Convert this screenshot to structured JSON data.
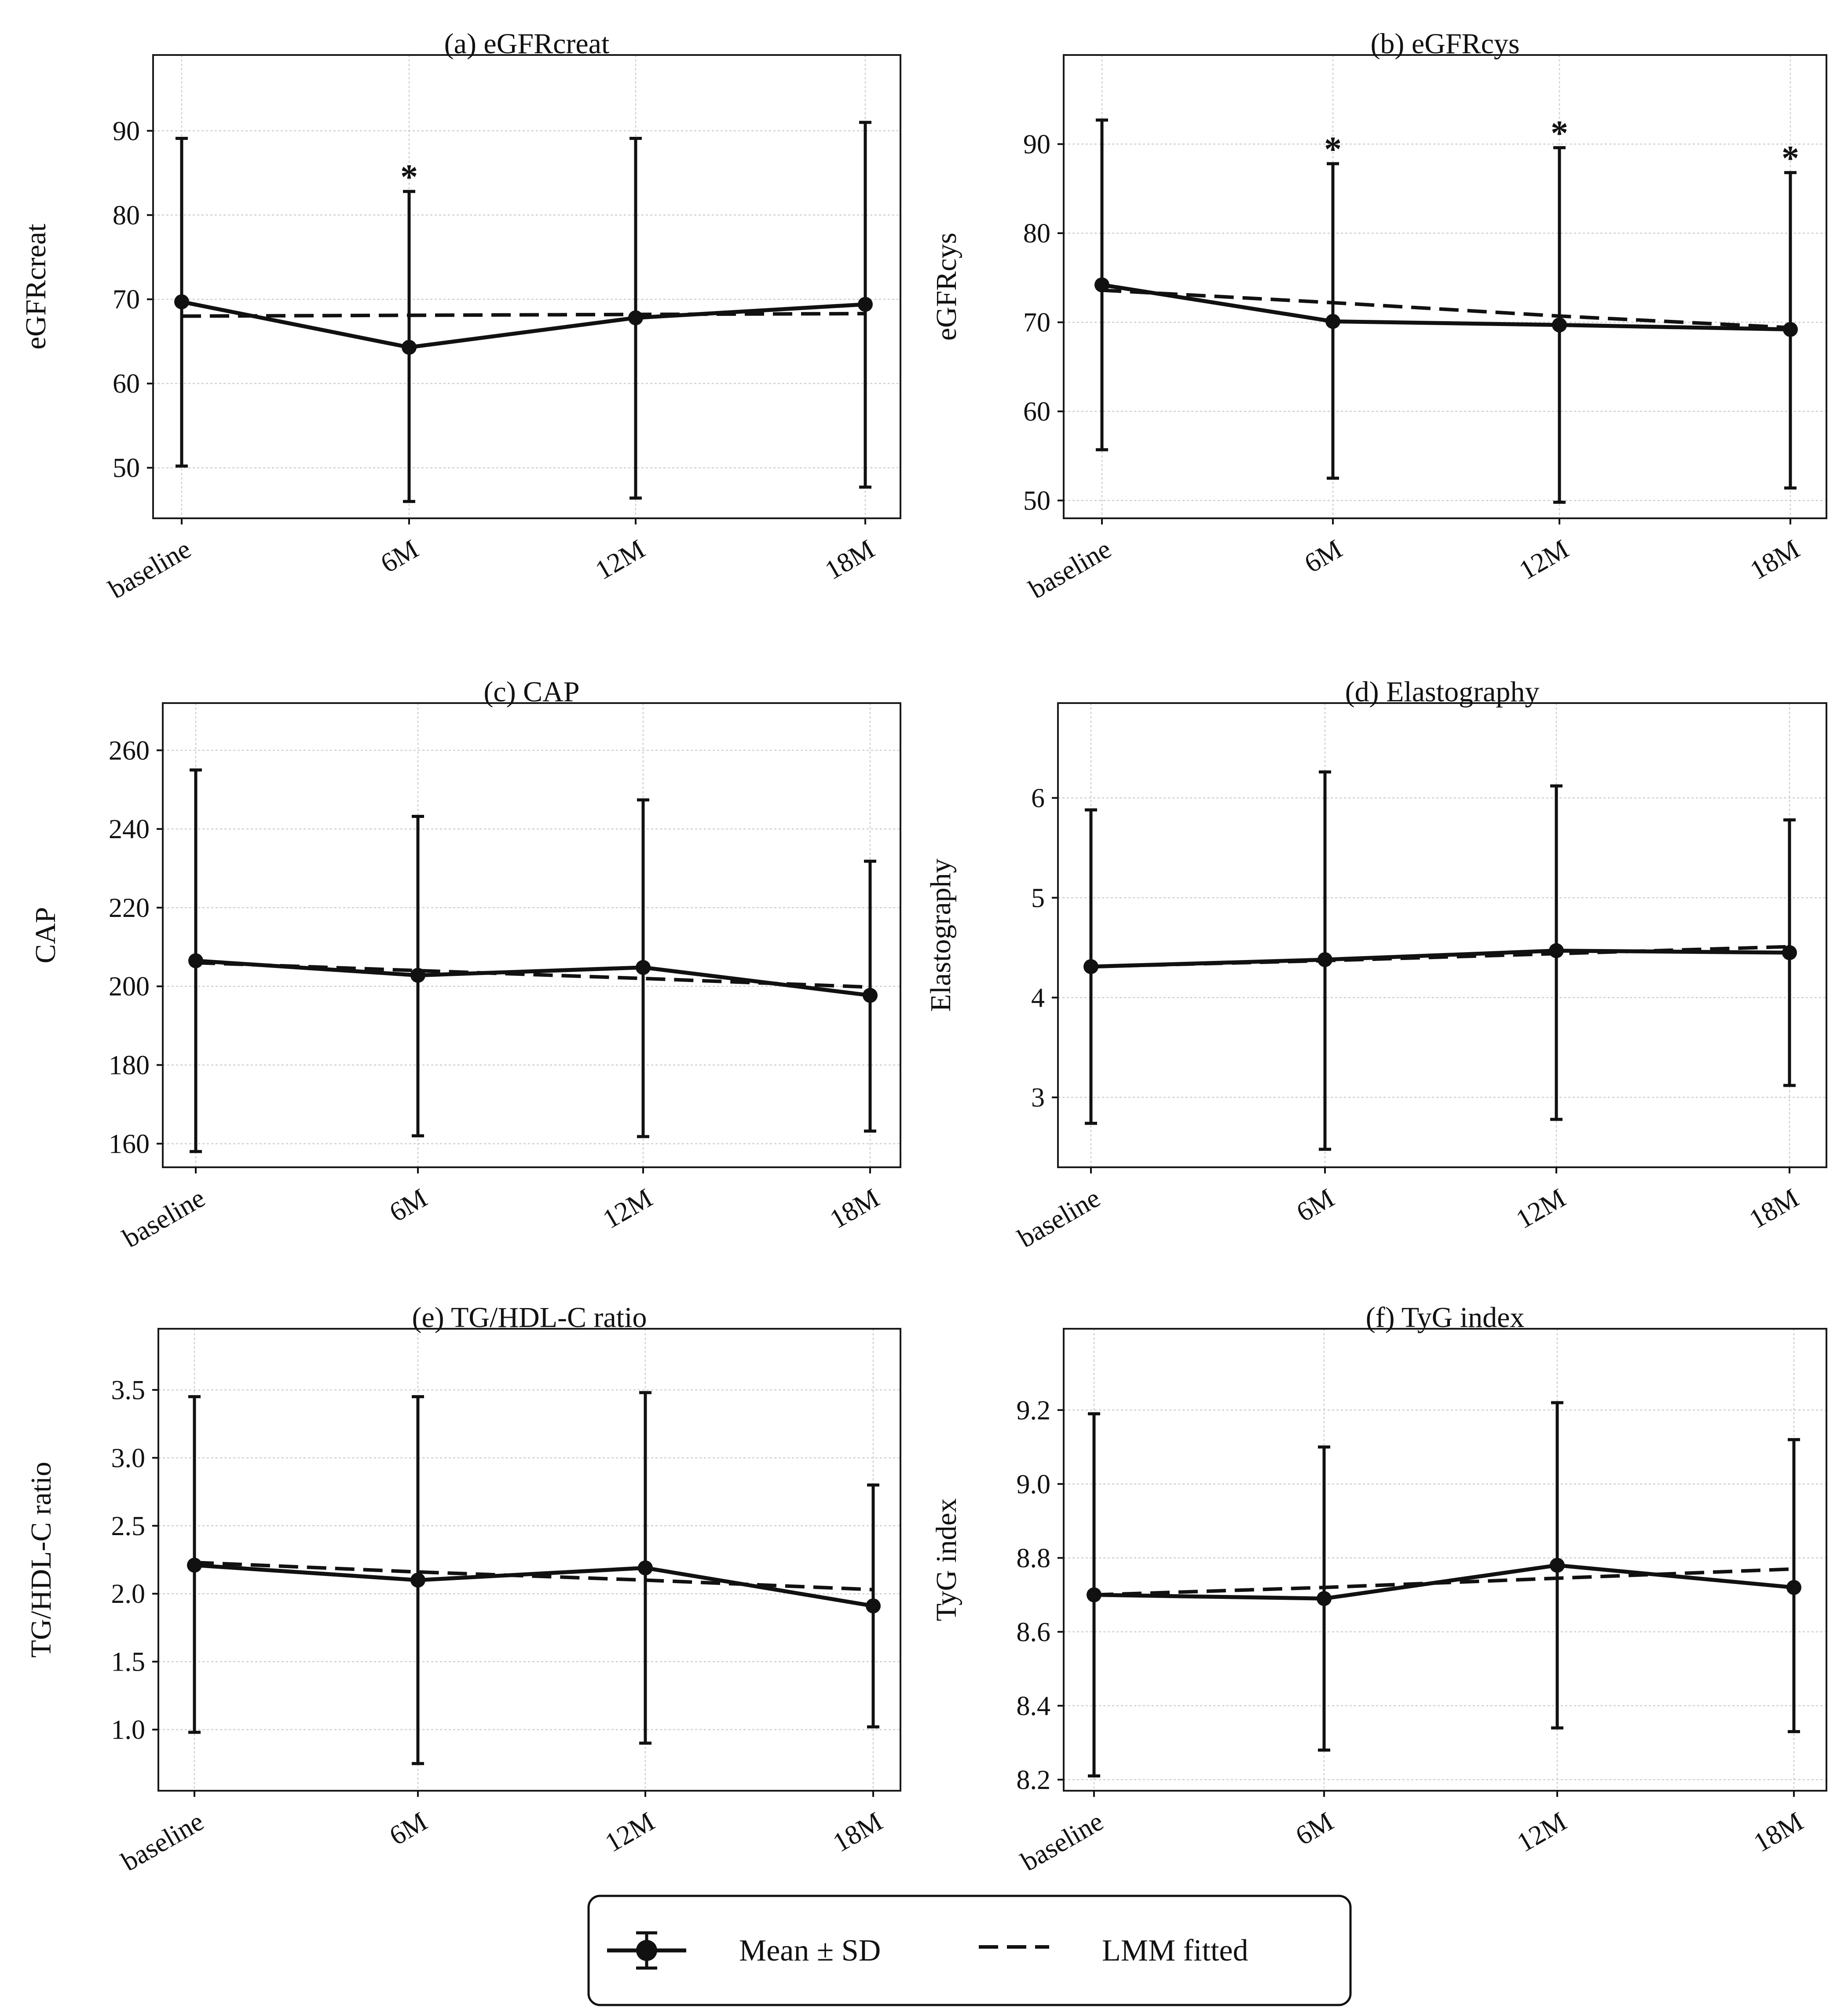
{
  "figure": {
    "legend": {
      "mean_label": "Mean ± SD",
      "lmm_label": "LMM fitted"
    }
  },
  "chart_data": [
    {
      "type": "line",
      "title": "(a) eGFRcreat",
      "ylabel": "eGFRcreat",
      "xlabel": "",
      "categories": [
        "baseline",
        "6M",
        "12M",
        "18M"
      ],
      "ylim": [
        44,
        99
      ],
      "yticks": [
        50,
        60,
        70,
        80,
        90
      ],
      "yticklabels": [
        "50",
        "60",
        "70",
        "80",
        "90"
      ],
      "series": [
        {
          "name": "Mean ± SD",
          "values": [
            69.7,
            64.3,
            67.8,
            69.4
          ],
          "err_low": [
            50.2,
            46.0,
            46.4,
            47.7
          ],
          "err_high": [
            89.1,
            82.8,
            89.1,
            91.0
          ]
        },
        {
          "name": "LMM fitted",
          "values": [
            68.0,
            68.1,
            68.2,
            68.3
          ]
        }
      ],
      "significance": [
        "",
        "*",
        "",
        ""
      ]
    },
    {
      "type": "line",
      "title": "(b) eGFRcys",
      "ylabel": "eGFRcys",
      "xlabel": "",
      "categories": [
        "baseline",
        "6M",
        "12M",
        "18M"
      ],
      "ylim": [
        48,
        100
      ],
      "yticks": [
        50,
        60,
        70,
        80,
        90
      ],
      "yticklabels": [
        "50",
        "60",
        "70",
        "80",
        "90"
      ],
      "series": [
        {
          "name": "Mean ± SD",
          "values": [
            74.2,
            70.1,
            69.7,
            69.2
          ],
          "err_low": [
            55.7,
            52.5,
            49.8,
            51.4
          ],
          "err_high": [
            92.7,
            87.8,
            89.6,
            86.8
          ]
        },
        {
          "name": "LMM fitted",
          "values": [
            73.6,
            72.2,
            70.7,
            69.4
          ]
        }
      ],
      "significance": [
        "",
        "*",
        "*",
        "*"
      ]
    },
    {
      "type": "line",
      "title": "(c) CAP",
      "ylabel": "CAP",
      "xlabel": "",
      "categories": [
        "baseline",
        "6M",
        "12M",
        "18M"
      ],
      "ylim": [
        154,
        272
      ],
      "yticks": [
        160,
        180,
        200,
        220,
        240,
        260
      ],
      "yticklabels": [
        "160",
        "180",
        "200",
        "220",
        "240",
        "260"
      ],
      "series": [
        {
          "name": "Mean ± SD",
          "values": [
            206.5,
            202.8,
            204.8,
            197.7
          ],
          "err_low": [
            158.0,
            162.0,
            161.8,
            163.2
          ],
          "err_high": [
            255.0,
            243.2,
            247.4,
            231.8
          ]
        },
        {
          "name": "LMM fitted",
          "values": [
            206.0,
            204.0,
            202.0,
            199.8
          ]
        }
      ],
      "significance": [
        "",
        "",
        "",
        ""
      ]
    },
    {
      "type": "line",
      "title": "(d) Elastography",
      "ylabel": "Elastography",
      "xlabel": "",
      "categories": [
        "baseline",
        "6M",
        "12M",
        "18M"
      ],
      "ylim": [
        2.3,
        6.95
      ],
      "yticks": [
        3,
        4,
        5,
        6
      ],
      "yticklabels": [
        "3",
        "4",
        "5",
        "6"
      ],
      "series": [
        {
          "name": "Mean ± SD",
          "values": [
            4.31,
            4.38,
            4.47,
            4.45
          ],
          "err_low": [
            2.74,
            2.48,
            2.78,
            3.12
          ],
          "err_high": [
            5.88,
            6.26,
            6.12,
            5.78
          ]
        },
        {
          "name": "LMM fitted",
          "values": [
            4.31,
            4.37,
            4.44,
            4.51
          ]
        }
      ],
      "significance": [
        "",
        "",
        "",
        ""
      ]
    },
    {
      "type": "line",
      "title": "(e) TG/HDL-C ratio",
      "ylabel": "TG/HDL-C ratio",
      "xlabel": "",
      "categories": [
        "baseline",
        "6M",
        "12M",
        "18M"
      ],
      "ylim": [
        0.55,
        3.95
      ],
      "yticks": [
        1.0,
        1.5,
        2.0,
        2.5,
        3.0,
        3.5
      ],
      "yticklabels": [
        "1.0",
        "1.5",
        "2.0",
        "2.5",
        "3.0",
        "3.5"
      ],
      "series": [
        {
          "name": "Mean ± SD",
          "values": [
            2.21,
            2.1,
            2.19,
            1.91
          ],
          "err_low": [
            0.98,
            0.75,
            0.9,
            1.02
          ],
          "err_high": [
            3.45,
            3.45,
            3.48,
            2.8
          ]
        },
        {
          "name": "LMM fitted",
          "values": [
            2.23,
            2.16,
            2.1,
            2.03
          ]
        }
      ],
      "significance": [
        "",
        "",
        "",
        ""
      ]
    },
    {
      "type": "line",
      "title": "(f) TyG index",
      "ylabel": "TyG index",
      "xlabel": "",
      "categories": [
        "baseline",
        "6M",
        "12M",
        "18M"
      ],
      "ylim": [
        8.17,
        9.42
      ],
      "yticks": [
        8.2,
        8.4,
        8.6,
        8.8,
        9.0,
        9.2
      ],
      "yticklabels": [
        "8.2",
        "8.4",
        "8.6",
        "8.8",
        "9.0",
        "9.2"
      ],
      "series": [
        {
          "name": "Mean ± SD",
          "values": [
            8.7,
            8.69,
            8.78,
            8.72
          ],
          "err_low": [
            8.21,
            8.28,
            8.34,
            8.33
          ],
          "err_high": [
            9.19,
            9.1,
            9.22,
            9.12
          ]
        },
        {
          "name": "LMM fitted",
          "values": [
            8.7,
            8.72,
            8.745,
            8.77
          ]
        }
      ],
      "significance": [
        "",
        "",
        "",
        ""
      ]
    }
  ]
}
